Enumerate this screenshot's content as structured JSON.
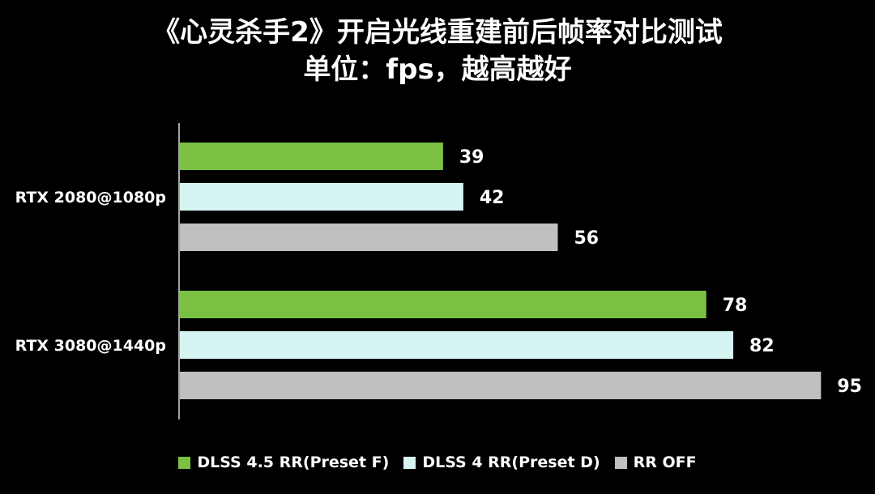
{
  "chart_data": {
    "type": "bar",
    "orientation": "horizontal",
    "title": "《心灵杀手2》开启光线重建前后帧率对比测试",
    "subtitle": "单位：fps，越高越好",
    "xlabel": "",
    "ylabel": "",
    "categories": [
      "RTX 2080@1080p",
      "RTX 3080@1440p"
    ],
    "series": [
      {
        "name": "DLSS 4.5 RR(Preset F)",
        "color": "#7ac143",
        "values": [
          39,
          78
        ]
      },
      {
        "name": "DLSS 4 RR(Preset D)",
        "color": "#d6f5f2",
        "values": [
          42,
          82
        ]
      },
      {
        "name": "RR OFF",
        "color": "#c0c0c0",
        "values": [
          56,
          95
        ]
      }
    ],
    "xlim": [
      0,
      100
    ],
    "grid": false,
    "data_labels": true,
    "legend": "bottom"
  }
}
